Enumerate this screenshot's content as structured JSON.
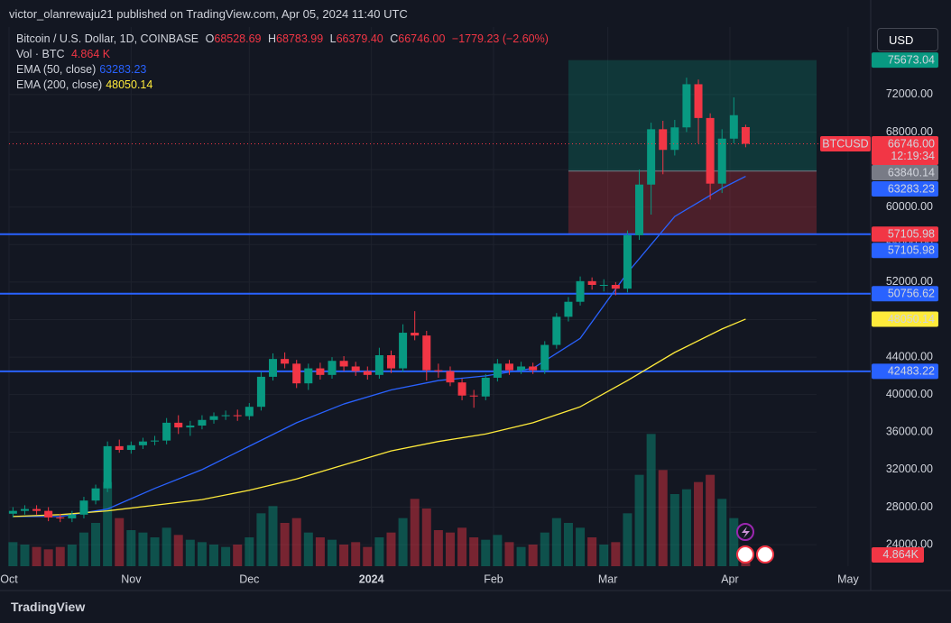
{
  "header": {
    "published": "victor_olanrewaju21 published on TradingView.com, Apr 05, 2024 11:40 UTC"
  },
  "legend": {
    "symbol": "Bitcoin / U.S. Dollar, 1D, COINBASE",
    "o_key": "O",
    "o": "68528.69",
    "h_key": "H",
    "h": "68783.99",
    "l_key": "L",
    "l": "66379.40",
    "c_key": "C",
    "c": "66746.00",
    "change": "−1779.23 (−2.60%)",
    "vol_name": "Vol · BTC",
    "vol": "4.864 K",
    "ema50_name": "EMA (50, close)",
    "ema50": "63283.23",
    "ema200_name": "EMA (200, close)",
    "ema200": "48050.14"
  },
  "currency": "USD",
  "footer": "TradingView",
  "chart_data": {
    "type": "candlestick",
    "up_color": "#089981",
    "down_color": "#f23645",
    "x": [
      1,
      4,
      7,
      10,
      13,
      16,
      19,
      22,
      25,
      28,
      31,
      34,
      37,
      40,
      43,
      46,
      49,
      52,
      55,
      58,
      61,
      64,
      67,
      70,
      73,
      76,
      79,
      82,
      85,
      88,
      91,
      94,
      97,
      100,
      103,
      106,
      109,
      112,
      115,
      118,
      121,
      124,
      127,
      130,
      133,
      136,
      139,
      142,
      145,
      148,
      151,
      154,
      157,
      160,
      163,
      166,
      169,
      172,
      175,
      178,
      181,
      184,
      187
    ],
    "open": [
      27300,
      27600,
      27800,
      27600,
      26900,
      26800,
      27200,
      28700,
      30000,
      34500,
      34100,
      34600,
      35000,
      35100,
      37000,
      36500,
      36700,
      37300,
      37700,
      37800,
      37700,
      38700,
      41900,
      43800,
      43300,
      41200,
      42800,
      42100,
      43600,
      43000,
      42500,
      42100,
      44200,
      42800,
      46600,
      46300,
      42600,
      42500,
      41300,
      39900,
      39800,
      41800,
      43300,
      42600,
      43000,
      42600,
      45300,
      48300,
      49900,
      52100,
      51700,
      51700,
      51300,
      57000,
      62400,
      68300,
      66100,
      68500,
      73100,
      69500,
      62500,
      67300,
      68528.69
    ],
    "high": [
      28000,
      28200,
      28200,
      28000,
      27300,
      27600,
      29100,
      30400,
      35000,
      35200,
      35000,
      35400,
      35600,
      37500,
      37800,
      37200,
      37800,
      38100,
      38300,
      38400,
      39100,
      42400,
      44400,
      44500,
      43700,
      43300,
      43400,
      44000,
      44100,
      43500,
      43000,
      45000,
      44700,
      47500,
      48900,
      46800,
      43300,
      43000,
      41700,
      40500,
      42200,
      43800,
      43700,
      43500,
      43400,
      45700,
      48700,
      50400,
      52600,
      52500,
      52300,
      52000,
      57500,
      64000,
      69000,
      69200,
      69300,
      73800,
      73600,
      70000,
      68300,
      71700,
      68783.99
    ],
    "low": [
      26900,
      27200,
      27200,
      26500,
      26400,
      26400,
      26800,
      28300,
      29600,
      33800,
      33700,
      34200,
      34600,
      34700,
      35800,
      35600,
      36300,
      36900,
      37300,
      37200,
      37300,
      38300,
      41500,
      42800,
      40700,
      40500,
      41600,
      41700,
      42500,
      42000,
      41600,
      41700,
      42300,
      42400,
      45800,
      41500,
      41800,
      40900,
      39400,
      38600,
      39400,
      41400,
      42100,
      42200,
      42200,
      42200,
      44900,
      47800,
      49500,
      51200,
      51000,
      50600,
      50900,
      56500,
      59200,
      63500,
      65500,
      68000,
      66800,
      60800,
      61500,
      66800,
      66379.4
    ],
    "close": [
      27600,
      27800,
      27600,
      26900,
      26800,
      27200,
      28700,
      30000,
      34500,
      34100,
      34600,
      35000,
      35100,
      37000,
      36500,
      36700,
      37300,
      37700,
      37800,
      37700,
      38700,
      41900,
      43800,
      43300,
      41200,
      42800,
      42100,
      43600,
      43000,
      42500,
      42100,
      44200,
      42800,
      46600,
      46300,
      42600,
      42500,
      41300,
      39900,
      39800,
      41800,
      43300,
      42600,
      43000,
      42600,
      45300,
      48300,
      49900,
      52100,
      51700,
      51700,
      51300,
      57000,
      62400,
      68300,
      66100,
      68500,
      73100,
      69500,
      62500,
      67300,
      69800,
      66746
    ],
    "volume": [
      10,
      9,
      8,
      7,
      8,
      9,
      14,
      18,
      35,
      20,
      15,
      14,
      12,
      16,
      13,
      11,
      10,
      9,
      8,
      9,
      12,
      22,
      25,
      18,
      20,
      14,
      12,
      11,
      9,
      10,
      8,
      12,
      14,
      20,
      28,
      24,
      15,
      14,
      16,
      12,
      11,
      13,
      10,
      8,
      9,
      14,
      20,
      18,
      16,
      12,
      9,
      10,
      22,
      38,
      55,
      40,
      30,
      32,
      35,
      38,
      28,
      20,
      4.864
    ],
    "vlim": [
      0,
      60
    ],
    "volume_label": {
      "value": 4.864,
      "label": "4.864K"
    },
    "lines": [
      {
        "name": "EMA (50, close)",
        "color": "#2962ff",
        "x": [
          1,
          13,
          25,
          37,
          49,
          61,
          73,
          85,
          97,
          109,
          121,
          133,
          145,
          157,
          169,
          181,
          187
        ],
        "values": [
          27000,
          27000,
          27800,
          30000,
          32000,
          34500,
          37000,
          39000,
          40500,
          41500,
          42000,
          42800,
          46000,
          53000,
          59000,
          62000,
          63283.23
        ]
      },
      {
        "name": "EMA (200, close)",
        "color": "#ffeb3b",
        "x": [
          1,
          13,
          25,
          37,
          49,
          61,
          73,
          85,
          97,
          109,
          121,
          133,
          145,
          157,
          169,
          181,
          187
        ],
        "values": [
          27000,
          27200,
          27600,
          28200,
          28800,
          29800,
          31000,
          32500,
          34000,
          35000,
          35800,
          37000,
          38700,
          41500,
          44500,
          47000,
          48050.14
        ]
      }
    ],
    "xlim": [
      0,
      205
    ],
    "ylim": [
      21700,
      79200
    ],
    "xticks": [
      {
        "value": 0,
        "label": "Oct"
      },
      {
        "value": 31,
        "label": "Nov"
      },
      {
        "value": 61,
        "label": "Dec"
      },
      {
        "value": 92,
        "label": "2024"
      },
      {
        "value": 123,
        "label": "Feb"
      },
      {
        "value": 152,
        "label": "Mar"
      },
      {
        "value": 183,
        "label": "Apr"
      },
      {
        "value": 213,
        "label": "May"
      }
    ],
    "yticks": [
      {
        "value": 24000,
        "label": "24000.00"
      },
      {
        "value": 28000,
        "label": "28000.00"
      },
      {
        "value": 32000,
        "label": "32000.00"
      },
      {
        "value": 36000,
        "label": "36000.00"
      },
      {
        "value": 40000,
        "label": "40000.00"
      },
      {
        "value": 44000,
        "label": "44000.00"
      },
      {
        "value": 48000,
        "label": "48000.00"
      },
      {
        "value": 52000,
        "label": "52000.00"
      },
      {
        "value": 56000,
        "label": "56000.00"
      },
      {
        "value": 60000,
        "label": "60000.00"
      },
      {
        "value": 64000,
        "label": "64000.00"
      },
      {
        "value": 68000,
        "label": "68000.00"
      },
      {
        "value": 72000,
        "label": "72000.00"
      }
    ],
    "symbol_tag": "BTCUSD",
    "countdown": "12:19:34",
    "price_labels": [
      {
        "value": 75673.04,
        "label": "75673.04",
        "color": "#089981"
      },
      {
        "value": 66746,
        "label": "66746.00",
        "color": "#f23645"
      },
      {
        "value": 63840.14,
        "label": "63840.14",
        "color": "#787b86"
      },
      {
        "value": 63283.23,
        "label": "63283.23",
        "color": "#2962ff"
      },
      {
        "value": 57105.98,
        "label": "57105.98",
        "color": "#f23645",
        "hline": true
      },
      {
        "value": 57105.98,
        "label": "57105.98",
        "color": "#2962ff"
      },
      {
        "value": 50756.62,
        "label": "50756.62",
        "color": "#2962ff",
        "hline": true
      },
      {
        "value": 48050.14,
        "label": "48050.14",
        "color": "#ffeb3b"
      },
      {
        "value": 42483.22,
        "label": "42483.22",
        "color": "#2962ff",
        "hline": true
      }
    ],
    "position_range": [
      142,
      205
    ]
  }
}
